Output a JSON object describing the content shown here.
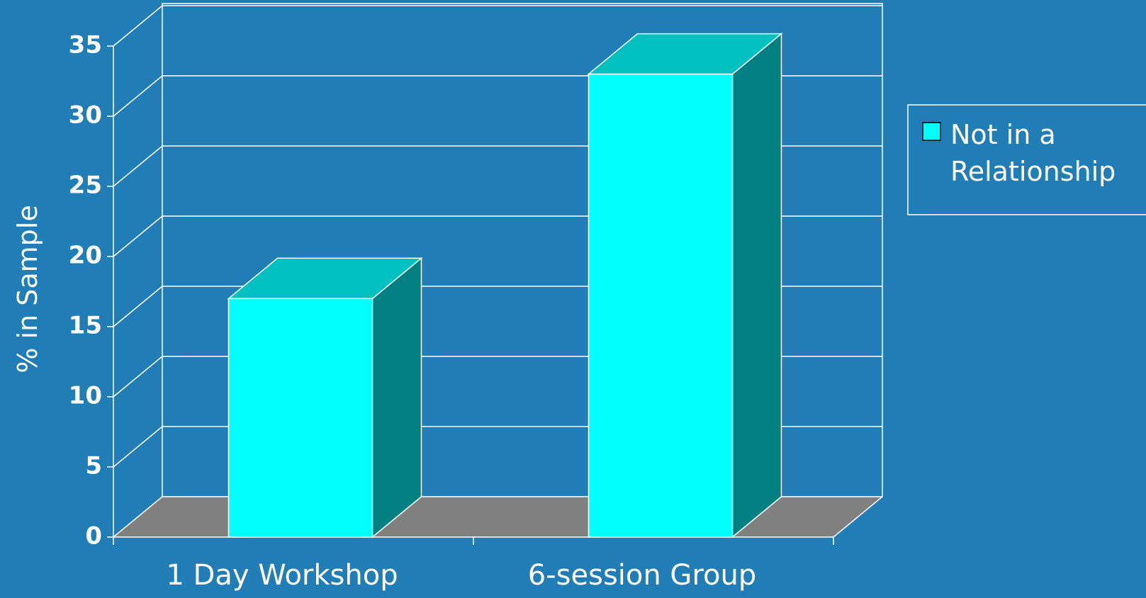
{
  "chart_data": {
    "type": "bar",
    "categories": [
      "1 Day Workshop",
      "6-session Group"
    ],
    "series": [
      {
        "name": "Not in a Relationship",
        "values": [
          17,
          33
        ]
      }
    ],
    "ylabel": "% in Sample",
    "xlabel": "",
    "ylim": [
      0,
      35
    ],
    "yticks": [
      0,
      5,
      10,
      15,
      20,
      25,
      30,
      35
    ],
    "grid": true,
    "legend": "top-right",
    "legend_lines": [
      "Not in a",
      "Relationship"
    ],
    "colors": {
      "background": "#217db5",
      "bar_front": "#00ffff",
      "bar_top": "#00c0c0",
      "bar_side": "#008080",
      "floor": "#808080",
      "lines": "#ffffff"
    }
  }
}
